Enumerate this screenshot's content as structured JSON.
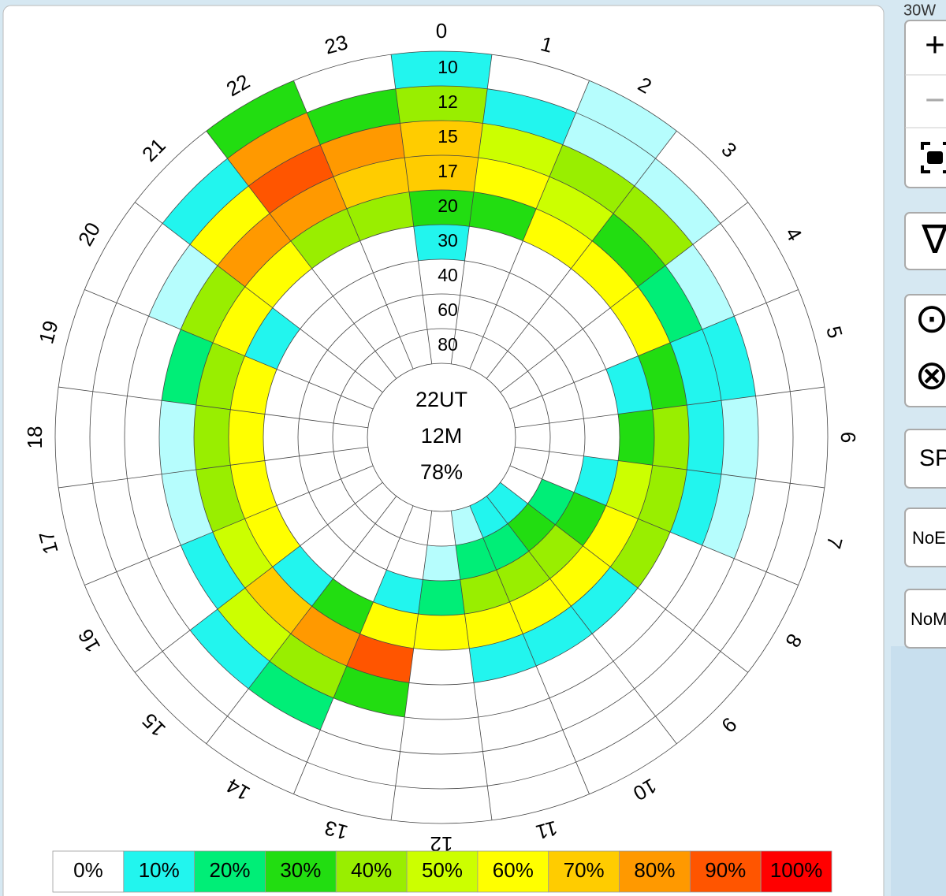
{
  "chart_data": {
    "type": "polar_heatmap",
    "center_text": [
      "22UT",
      "12M",
      "78%"
    ],
    "categories": [
      0,
      1,
      2,
      3,
      4,
      5,
      6,
      7,
      8,
      9,
      10,
      11,
      12,
      13,
      14,
      15,
      16,
      17,
      18,
      19,
      20,
      21,
      22,
      23
    ],
    "rings": [
      10,
      12,
      15,
      17,
      20,
      30,
      40,
      60,
      80
    ],
    "values": [
      [
        10,
        40,
        70,
        70,
        30,
        10,
        0,
        0,
        0
      ],
      [
        0,
        10,
        50,
        60,
        30,
        0,
        0,
        0,
        0
      ],
      [
        5,
        5,
        40,
        50,
        60,
        0,
        0,
        0,
        0
      ],
      [
        0,
        5,
        40,
        30,
        60,
        0,
        0,
        0,
        0
      ],
      [
        0,
        0,
        5,
        20,
        60,
        0,
        0,
        0,
        0
      ],
      [
        0,
        0,
        10,
        10,
        30,
        10,
        0,
        0,
        0
      ],
      [
        0,
        0,
        5,
        10,
        40,
        30,
        0,
        0,
        0
      ],
      [
        0,
        0,
        5,
        10,
        40,
        50,
        10,
        0,
        0
      ],
      [
        0,
        0,
        0,
        0,
        40,
        60,
        30,
        20,
        0
      ],
      [
        0,
        0,
        0,
        0,
        10,
        60,
        40,
        30,
        10
      ],
      [
        0,
        0,
        0,
        0,
        10,
        60,
        40,
        20,
        10
      ],
      [
        0,
        0,
        0,
        0,
        10,
        60,
        40,
        20,
        5
      ],
      [
        0,
        0,
        0,
        0,
        0,
        60,
        20,
        5,
        0
      ],
      [
        0,
        0,
        0,
        30,
        90,
        60,
        10,
        0,
        0
      ],
      [
        0,
        0,
        20,
        40,
        80,
        30,
        0,
        0,
        0
      ],
      [
        0,
        0,
        10,
        50,
        70,
        10,
        0,
        0,
        0
      ],
      [
        0,
        0,
        0,
        10,
        50,
        60,
        0,
        0,
        0
      ],
      [
        0,
        0,
        0,
        5,
        40,
        60,
        0,
        0,
        0
      ],
      [
        0,
        0,
        0,
        5,
        40,
        60,
        0,
        0,
        0
      ],
      [
        0,
        0,
        0,
        20,
        40,
        60,
        0,
        0,
        0
      ],
      [
        0,
        0,
        5,
        40,
        60,
        10,
        0,
        0,
        0
      ],
      [
        0,
        10,
        60,
        80,
        60,
        0,
        0,
        0,
        0
      ],
      [
        30,
        80,
        90,
        80,
        40,
        0,
        0,
        0,
        0
      ],
      [
        0,
        30,
        80,
        70,
        40,
        0,
        0,
        0,
        0
      ]
    ],
    "low_color": "#b6fdfd",
    "legend": [
      {
        "value": 0,
        "label": "0%",
        "color": "#ffffff"
      },
      {
        "value": 10,
        "label": "10%",
        "color": "#22f5ee"
      },
      {
        "value": 20,
        "label": "20%",
        "color": "#00ee77"
      },
      {
        "value": 30,
        "label": "30%",
        "color": "#22dd11"
      },
      {
        "value": 40,
        "label": "40%",
        "color": "#99ee00"
      },
      {
        "value": 50,
        "label": "50%",
        "color": "#ccff00"
      },
      {
        "value": 60,
        "label": "60%",
        "color": "#ffff00"
      },
      {
        "value": 70,
        "label": "70%",
        "color": "#ffcc00"
      },
      {
        "value": 80,
        "label": "80%",
        "color": "#ff9900"
      },
      {
        "value": 90,
        "label": "90%",
        "color": "#ff5500"
      },
      {
        "value": 100,
        "label": "100%",
        "color": "#ff0000"
      }
    ]
  },
  "ui": {
    "map_label": "30W",
    "buttons": [
      "+",
      "−",
      "∇",
      "⊙",
      "⊗",
      "SP",
      "NoE",
      "NoM"
    ]
  }
}
